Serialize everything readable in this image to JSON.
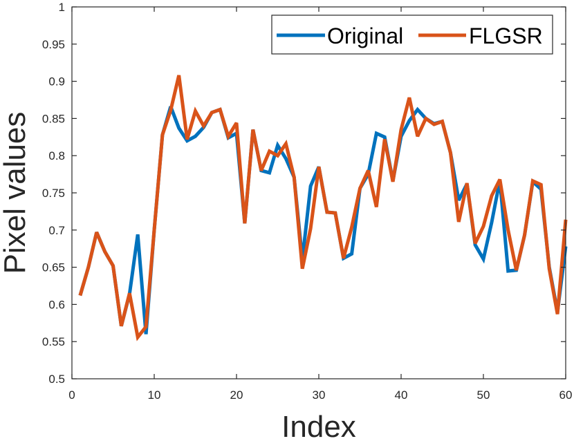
{
  "chart_data": {
    "type": "line",
    "title": "",
    "xlabel": "Index",
    "ylabel": "Pixel values",
    "xlim": [
      0,
      60
    ],
    "ylim": [
      0.5,
      1
    ],
    "xticks": [
      0,
      10,
      20,
      30,
      40,
      50,
      60
    ],
    "yticks": [
      0.5,
      0.55,
      0.6,
      0.65,
      0.7,
      0.75,
      0.8,
      0.85,
      0.9,
      0.95,
      1
    ],
    "grid": false,
    "legend": "top-right",
    "x": [
      1,
      2,
      3,
      4,
      5,
      6,
      7,
      8,
      9,
      10,
      11,
      12,
      13,
      14,
      15,
      16,
      17,
      18,
      19,
      20,
      21,
      22,
      23,
      24,
      25,
      26,
      27,
      28,
      29,
      30,
      31,
      32,
      33,
      34,
      35,
      36,
      37,
      38,
      39,
      40,
      41,
      42,
      43,
      44,
      45,
      46,
      47,
      48,
      49,
      50,
      51,
      52,
      53,
      54,
      55,
      56,
      57,
      58,
      59,
      60
    ],
    "series": [
      {
        "name": "Original",
        "color": "#0072BD",
        "values": [
          0.612,
          0.65,
          0.697,
          0.671,
          0.652,
          0.571,
          0.614,
          0.694,
          0.56,
          0.7,
          0.828,
          0.866,
          0.837,
          0.82,
          0.826,
          0.838,
          0.858,
          0.862,
          0.824,
          0.83,
          0.709,
          0.835,
          0.78,
          0.777,
          0.814,
          0.796,
          0.771,
          0.66,
          0.759,
          0.785,
          0.724,
          0.723,
          0.662,
          0.668,
          0.756,
          0.775,
          0.83,
          0.825,
          0.766,
          0.826,
          0.847,
          0.862,
          0.85,
          0.843,
          0.846,
          0.804,
          0.74,
          0.762,
          0.68,
          0.661,
          0.71,
          0.767,
          0.645,
          0.646,
          0.693,
          0.765,
          0.755,
          0.65,
          0.59,
          0.678
        ]
      },
      {
        "name": "FLGSR",
        "color": "#D95319",
        "values": [
          0.612,
          0.65,
          0.697,
          0.671,
          0.652,
          0.571,
          0.615,
          0.556,
          0.57,
          0.7,
          0.828,
          0.861,
          0.908,
          0.822,
          0.86,
          0.84,
          0.858,
          0.862,
          0.826,
          0.844,
          0.709,
          0.835,
          0.78,
          0.806,
          0.8,
          0.816,
          0.771,
          0.648,
          0.702,
          0.785,
          0.724,
          0.723,
          0.662,
          0.704,
          0.756,
          0.78,
          0.731,
          0.822,
          0.765,
          0.835,
          0.878,
          0.826,
          0.85,
          0.842,
          0.846,
          0.804,
          0.711,
          0.763,
          0.682,
          0.705,
          0.746,
          0.768,
          0.7,
          0.646,
          0.693,
          0.766,
          0.761,
          0.648,
          0.587,
          0.714
        ]
      }
    ]
  }
}
